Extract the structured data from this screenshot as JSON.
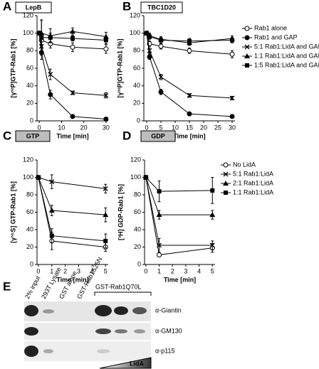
{
  "chart_data": [
    {
      "type": "line",
      "label": "A",
      "title": "LepB",
      "title_box_color": "#ffffff",
      "xlabel": "Time [min]",
      "ylabel": "[γ³²P]GTP-Rab1 [%]",
      "x": [
        0,
        1,
        5,
        15,
        30
      ],
      "xlim": [
        -1,
        31
      ],
      "xticks": [
        0,
        10,
        20,
        30
      ],
      "ylim": [
        0,
        120
      ],
      "yticks": [
        0,
        20,
        40,
        60,
        80,
        100,
        120
      ],
      "series": [
        {
          "marker": "circle-open",
          "values": [
            100,
            92,
            88,
            84,
            82
          ],
          "errors": [
            0,
            5,
            5,
            5,
            5
          ]
        },
        {
          "marker": "circle",
          "values": [
            100,
            78,
            30,
            5,
            2
          ],
          "errors": [
            0,
            8,
            5,
            2,
            2
          ]
        },
        {
          "marker": "x",
          "values": [
            100,
            85,
            53,
            32,
            29
          ],
          "errors": [
            0,
            8,
            6,
            2,
            3
          ]
        },
        {
          "marker": "triangle",
          "values": [
            100,
            100,
            97,
            102,
            96
          ],
          "errors": [
            0,
            15,
            8,
            4,
            5
          ]
        },
        {
          "marker": "square",
          "values": [
            100,
            95,
            95,
            94,
            92
          ],
          "errors": [
            0,
            20,
            5,
            3,
            4
          ]
        }
      ]
    },
    {
      "type": "line",
      "label": "B",
      "title": "TBC1D20",
      "title_box_color": "#ffffff",
      "xlabel": "Time [min]",
      "ylabel": "[γ³²P]GTP-Rab1 [%]",
      "x": [
        0,
        1,
        5,
        15,
        30
      ],
      "xlim": [
        -1,
        31
      ],
      "xticks": [
        0,
        5,
        10,
        15,
        20,
        25,
        30
      ],
      "ylim": [
        0,
        120
      ],
      "yticks": [
        0,
        20,
        40,
        60,
        80,
        100,
        120
      ],
      "series": [
        {
          "name": "Rab1 alone",
          "marker": "circle-open",
          "values": [
            100,
            88,
            85,
            80,
            76
          ],
          "errors": [
            0,
            3,
            3,
            3,
            4
          ]
        },
        {
          "name": "Rab1 and GAP",
          "marker": "circle",
          "values": [
            100,
            73,
            33,
            8,
            5
          ],
          "errors": [
            0,
            3,
            3,
            2,
            2
          ]
        },
        {
          "name": "5:1 Rab1:LidA and GAP",
          "marker": "x",
          "values": [
            100,
            80,
            50,
            29,
            26
          ],
          "errors": [
            0,
            3,
            3,
            2,
            2
          ]
        },
        {
          "name": "1:1 Rab1:LidA and GAP",
          "marker": "triangle",
          "values": [
            100,
            97,
            93,
            89,
            94
          ],
          "errors": [
            0,
            3,
            3,
            3,
            3
          ]
        },
        {
          "name": "1:5 Rab1:LidA and GAP",
          "marker": "square",
          "values": [
            100,
            96,
            92,
            91,
            92
          ],
          "errors": [
            0,
            3,
            3,
            3,
            3
          ]
        }
      ],
      "legend": "right"
    },
    {
      "type": "line",
      "label": "C",
      "title": "GTP",
      "title_box_color": "#bdbdbd",
      "xlabel": "Time [min]",
      "ylabel": "[γ³⁵S] GTP-Rab1 [%]",
      "x": [
        0,
        1,
        5
      ],
      "xlim": [
        -0.1,
        5.2
      ],
      "xticks": [
        0,
        1,
        2,
        3,
        4,
        5
      ],
      "ylim": [
        0,
        120
      ],
      "yticks": [
        0,
        20,
        40,
        60,
        80,
        100,
        120
      ],
      "series": [
        {
          "marker": "circle-open",
          "values": [
            100,
            27,
            20
          ],
          "errors": [
            0,
            10,
            5
          ]
        },
        {
          "marker": "x",
          "values": [
            100,
            95,
            87
          ],
          "errors": [
            0,
            8,
            5
          ]
        },
        {
          "marker": "triangle",
          "values": [
            100,
            62,
            57
          ],
          "errors": [
            0,
            6,
            8
          ]
        },
        {
          "marker": "square",
          "values": [
            100,
            33,
            27
          ],
          "errors": [
            0,
            8,
            8
          ]
        }
      ]
    },
    {
      "type": "line",
      "label": "D",
      "title": "GDP",
      "title_box_color": "#bdbdbd",
      "xlabel": "Time [min]",
      "ylabel": "[³H] GDP-Rab1 [%]",
      "x": [
        0,
        1,
        5
      ],
      "xlim": [
        -0.1,
        5.2
      ],
      "xticks": [
        0,
        1,
        2,
        3,
        4,
        5
      ],
      "ylim": [
        0,
        120
      ],
      "yticks": [
        0,
        20,
        40,
        60,
        80,
        100,
        120
      ],
      "series": [
        {
          "name": "No LidA",
          "marker": "circle-open",
          "values": [
            100,
            11,
            19
          ],
          "errors": [
            0,
            2,
            5
          ]
        },
        {
          "name": "5:1 Rab1:LidA",
          "marker": "x",
          "values": [
            100,
            22,
            22
          ],
          "errors": [
            0,
            8,
            5
          ]
        },
        {
          "name": "2:1 Rab1:LidA",
          "marker": "triangle",
          "values": [
            100,
            57,
            57
          ],
          "errors": [
            0,
            5,
            5
          ]
        },
        {
          "name": "1:1 Rab1:LidA",
          "marker": "square",
          "values": [
            100,
            84,
            85
          ],
          "errors": [
            0,
            12,
            15
          ]
        }
      ],
      "legend": "right"
    }
  ],
  "blot": {
    "label": "E",
    "lanes": [
      "2% input",
      "293T Lysate",
      "GST alone",
      "GST-Rab1S25N"
    ],
    "group_label": "GST-Rab1Q70L",
    "rows": [
      "α-Giantin",
      "α-GM130",
      "α-p115"
    ],
    "gradient_label": "LidA"
  }
}
